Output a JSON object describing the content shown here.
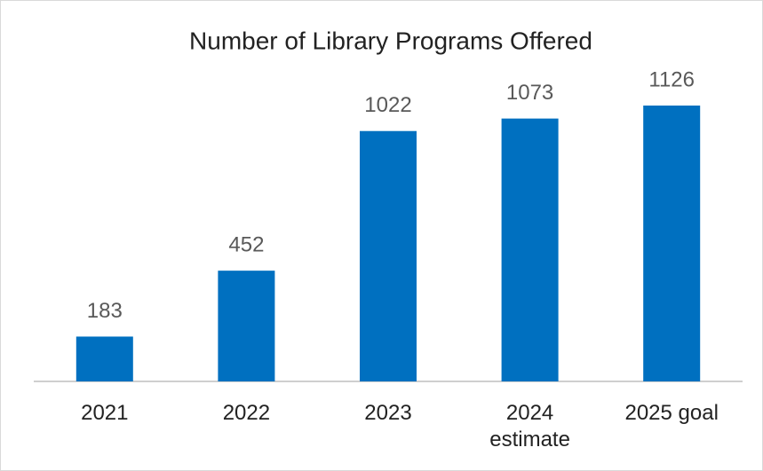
{
  "chart_data": {
    "type": "bar",
    "title": "Number of Library Programs Offered",
    "categories": [
      "2021",
      "2022",
      "2023",
      "2024 estimate",
      "2025 goal"
    ],
    "values": [
      183,
      452,
      1022,
      1073,
      1126
    ],
    "color": "#0070c0"
  }
}
